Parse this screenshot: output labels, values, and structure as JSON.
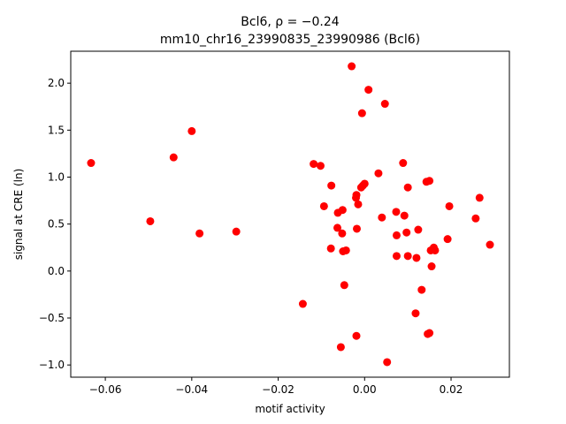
{
  "chart_data": {
    "type": "scatter",
    "title_line1": "Bcl6, ρ = −0.24",
    "title_line2": "mm10_chr16_23990835_23990986 (Bcl6)",
    "xlabel": "motif activity",
    "ylabel": "signal at CRE (ln)",
    "xlim": [
      -0.068,
      0.0335
    ],
    "ylim": [
      -1.13,
      2.34
    ],
    "xticks": [
      -0.06,
      -0.04,
      -0.02,
      0.0,
      0.02
    ],
    "xtick_labels": [
      "−0.06",
      "−0.04",
      "−0.02",
      "0.00",
      "0.02"
    ],
    "yticks": [
      -1.0,
      -0.5,
      0.0,
      0.5,
      1.0,
      1.5,
      2.0
    ],
    "ytick_labels": [
      "−1.0",
      "−0.5",
      "0.0",
      "0.5",
      "1.0",
      "1.5",
      "2.0"
    ],
    "grid": false,
    "marker_color": "#ff0000",
    "points": [
      {
        "x": -0.0633,
        "y": 1.15
      },
      {
        "x": -0.0496,
        "y": 0.53
      },
      {
        "x": -0.0442,
        "y": 1.21
      },
      {
        "x": -0.04,
        "y": 1.49
      },
      {
        "x": -0.0382,
        "y": 0.4
      },
      {
        "x": -0.0297,
        "y": 0.42
      },
      {
        "x": -0.0143,
        "y": -0.35
      },
      {
        "x": -0.0118,
        "y": 1.14
      },
      {
        "x": -0.0102,
        "y": 1.12
      },
      {
        "x": -0.0094,
        "y": 0.69
      },
      {
        "x": -0.0078,
        "y": 0.24
      },
      {
        "x": -0.0077,
        "y": 0.91
      },
      {
        "x": -0.0063,
        "y": 0.46
      },
      {
        "x": -0.0062,
        "y": 0.62
      },
      {
        "x": -0.0055,
        "y": -0.81
      },
      {
        "x": -0.0052,
        "y": 0.4
      },
      {
        "x": -0.0051,
        "y": 0.65
      },
      {
        "x": -0.005,
        "y": 0.21
      },
      {
        "x": -0.0047,
        "y": -0.15
      },
      {
        "x": -0.0043,
        "y": 0.22
      },
      {
        "x": -0.003,
        "y": 2.18
      },
      {
        "x": -0.002,
        "y": 0.78
      },
      {
        "x": -0.0019,
        "y": 0.81
      },
      {
        "x": -0.0019,
        "y": -0.69
      },
      {
        "x": -0.0018,
        "y": 0.45
      },
      {
        "x": -0.0015,
        "y": 0.71
      },
      {
        "x": -0.0008,
        "y": 0.89
      },
      {
        "x": -0.0006,
        "y": 1.68
      },
      {
        "x": -0.0004,
        "y": 0.91
      },
      {
        "x": 0.0,
        "y": 0.93
      },
      {
        "x": 0.0009,
        "y": 1.93
      },
      {
        "x": 0.0032,
        "y": 1.04
      },
      {
        "x": 0.004,
        "y": 0.57
      },
      {
        "x": 0.0047,
        "y": 1.78
      },
      {
        "x": 0.0052,
        "y": -0.97
      },
      {
        "x": 0.0073,
        "y": 0.63
      },
      {
        "x": 0.0074,
        "y": 0.38
      },
      {
        "x": 0.0074,
        "y": 0.16
      },
      {
        "x": 0.0089,
        "y": 1.15
      },
      {
        "x": 0.0092,
        "y": 0.59
      },
      {
        "x": 0.0097,
        "y": 0.41
      },
      {
        "x": 0.01,
        "y": 0.89
      },
      {
        "x": 0.01,
        "y": 0.16
      },
      {
        "x": 0.0118,
        "y": -0.45
      },
      {
        "x": 0.012,
        "y": 0.14
      },
      {
        "x": 0.0124,
        "y": 0.44
      },
      {
        "x": 0.0132,
        "y": -0.2
      },
      {
        "x": 0.0143,
        "y": 0.95
      },
      {
        "x": 0.0146,
        "y": -0.67
      },
      {
        "x": 0.015,
        "y": -0.66
      },
      {
        "x": 0.015,
        "y": 0.96
      },
      {
        "x": 0.0153,
        "y": 0.22
      },
      {
        "x": 0.0155,
        "y": 0.05
      },
      {
        "x": 0.016,
        "y": 0.25
      },
      {
        "x": 0.0163,
        "y": 0.22
      },
      {
        "x": 0.0192,
        "y": 0.34
      },
      {
        "x": 0.0196,
        "y": 0.69
      },
      {
        "x": 0.0257,
        "y": 0.56
      },
      {
        "x": 0.0266,
        "y": 0.78
      },
      {
        "x": 0.029,
        "y": 0.28
      }
    ]
  }
}
